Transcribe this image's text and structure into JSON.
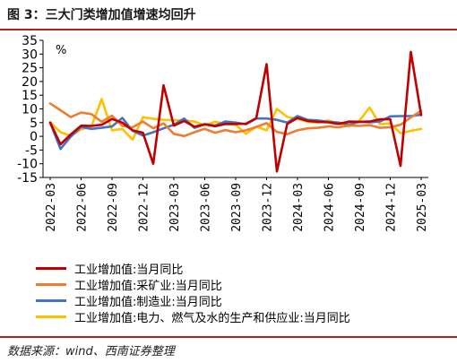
{
  "header": {
    "title": "图 3：三大门类增加值增速均回升"
  },
  "footer": {
    "source": "数据来源：wind、西南证券整理"
  },
  "chart_data": {
    "type": "line",
    "unit": "%",
    "ylim": [
      -15,
      35
    ],
    "yticks": [
      35,
      30,
      25,
      20,
      15,
      10,
      5,
      0,
      -5,
      -10,
      -15
    ],
    "tick_labels": [
      "2022-03",
      "2022-06",
      "2022-09",
      "2022-12",
      "2023-03",
      "2023-06",
      "2023-09",
      "2023-12",
      "2024-03",
      "2024-06",
      "2024-09",
      "2024-12",
      "2025-03"
    ],
    "tick_indices": [
      0,
      3,
      6,
      9,
      12,
      15,
      18,
      21,
      24,
      27,
      30,
      33,
      36
    ],
    "x": [
      "2022-03",
      "2022-04",
      "2022-05",
      "2022-06",
      "2022-07",
      "2022-08",
      "2022-09",
      "2022-10",
      "2022-11",
      "2022-12",
      "2023-01",
      "2023-02",
      "2023-03",
      "2023-04",
      "2023-05",
      "2023-06",
      "2023-07",
      "2023-08",
      "2023-09",
      "2023-10",
      "2023-11",
      "2023-12",
      "2024-01",
      "2024-02",
      "2024-03",
      "2024-04",
      "2024-05",
      "2024-06",
      "2024-07",
      "2024-08",
      "2024-09",
      "2024-10",
      "2024-11",
      "2024-12",
      "2025-01",
      "2025-02",
      "2025-03"
    ],
    "series": [
      {
        "name": "工业增加值:当月同比",
        "color": "#c00000",
        "values": [
          5.0,
          -2.9,
          0.7,
          3.9,
          3.8,
          4.2,
          6.3,
          5.0,
          2.2,
          1.3,
          -10.0,
          18.6,
          3.9,
          5.6,
          3.5,
          4.4,
          3.7,
          4.5,
          4.5,
          4.6,
          6.6,
          26.3,
          -12.8,
          4.5,
          6.7,
          5.6,
          5.3,
          5.1,
          4.5,
          5.4,
          5.3,
          5.4,
          6.2,
          6.2,
          -10.8,
          30.8,
          7.7
        ]
      },
      {
        "name": "工业增加值:采矿业:当月同比",
        "color": "#ed7d31",
        "values": [
          12.0,
          9.5,
          7.0,
          8.7,
          8.1,
          5.3,
          7.5,
          3.8,
          3.3,
          5.4,
          2.9,
          4.7,
          0.9,
          0.1,
          1.5,
          2.7,
          1.3,
          2.3,
          1.5,
          2.2,
          3.4,
          4.8,
          1.6,
          0.8,
          2.2,
          2.9,
          3.1,
          3.6,
          3.3,
          4.0,
          3.8,
          4.1,
          3.1,
          3.3,
          4.2,
          6.9,
          9.3
        ]
      },
      {
        "name": "工业增加值:制造业:当月同比",
        "color": "#4472c4",
        "values": [
          5.0,
          -4.6,
          -0.1,
          3.4,
          2.7,
          3.1,
          3.6,
          6.7,
          2.0,
          0.3,
          1.5,
          2.9,
          4.2,
          6.5,
          3.1,
          4.4,
          3.9,
          5.4,
          5.0,
          4.4,
          6.5,
          6.5,
          6.0,
          5.0,
          7.4,
          6.0,
          5.8,
          5.3,
          5.0,
          4.3,
          5.3,
          5.1,
          5.4,
          7.3,
          7.4,
          7.4,
          7.9
        ]
      },
      {
        "name": "工业增加值:电力、燃气及水的生产和供应业:当月同比",
        "color": "#ffc000",
        "values": [
          5.1,
          1.5,
          0.2,
          2.5,
          3.6,
          13.6,
          2.2,
          2.7,
          -1.2,
          7.0,
          6.4,
          6.0,
          5.9,
          5.8,
          5.4,
          4.0,
          5.3,
          4.5,
          4.2,
          0.9,
          3.5,
          2.2,
          10.0,
          7.1,
          6.3,
          5.3,
          5.0,
          5.8,
          4.6,
          3.6,
          5.7,
          10.5,
          4.4,
          4.7,
          1.1,
          2.0,
          2.7
        ]
      }
    ]
  }
}
